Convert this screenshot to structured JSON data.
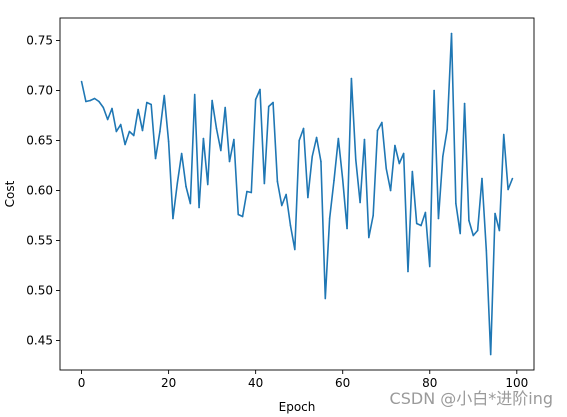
{
  "chart_data": {
    "type": "line",
    "xlabel": "Epoch",
    "ylabel": "Cost",
    "xlim": [
      -4.95,
      103.95
    ],
    "ylim": [
      0.4205,
      0.7725
    ],
    "xticks": [
      "0",
      "20",
      "40",
      "60",
      "80",
      "100"
    ],
    "xtick_values": [
      0,
      20,
      40,
      60,
      80,
      100
    ],
    "yticks": [
      "0.45",
      "0.50",
      "0.55",
      "0.60",
      "0.65",
      "0.70",
      "0.75"
    ],
    "ytick_values": [
      0.45,
      0.5,
      0.55,
      0.6,
      0.65,
      0.7,
      0.75
    ],
    "grid": false,
    "line_color": "#1f77b4",
    "series": [
      {
        "x": [
          0,
          1,
          2,
          3,
          4,
          5,
          6,
          7,
          8,
          9,
          10,
          11,
          12,
          13,
          14,
          15,
          16,
          17,
          18,
          19,
          20,
          21,
          22,
          23,
          24,
          25,
          26,
          27,
          28,
          29,
          30,
          31,
          32,
          33,
          34,
          35,
          36,
          37,
          38,
          39,
          40,
          41,
          42,
          43,
          44,
          45,
          46,
          47,
          48,
          49,
          50,
          51,
          52,
          53,
          54,
          55,
          56,
          57,
          58,
          59,
          60,
          61,
          62,
          63,
          64,
          65,
          66,
          67,
          68,
          69,
          70,
          71,
          72,
          73,
          74,
          75,
          76,
          77,
          78,
          79,
          80,
          81,
          82,
          83,
          84,
          85,
          86,
          87,
          88,
          89,
          90,
          91,
          92,
          93,
          94,
          95,
          96,
          97,
          98,
          99
        ],
        "values": [
          0.709,
          0.689,
          0.69,
          0.692,
          0.689,
          0.683,
          0.671,
          0.682,
          0.659,
          0.666,
          0.646,
          0.659,
          0.655,
          0.681,
          0.66,
          0.688,
          0.686,
          0.632,
          0.659,
          0.695,
          0.649,
          0.572,
          0.607,
          0.637,
          0.604,
          0.587,
          0.696,
          0.583,
          0.652,
          0.606,
          0.69,
          0.662,
          0.64,
          0.683,
          0.629,
          0.651,
          0.576,
          0.574,
          0.599,
          0.598,
          0.691,
          0.701,
          0.607,
          0.684,
          0.688,
          0.609,
          0.585,
          0.596,
          0.565,
          0.541,
          0.65,
          0.662,
          0.593,
          0.634,
          0.653,
          0.629,
          0.492,
          0.572,
          0.61,
          0.652,
          0.611,
          0.562,
          0.712,
          0.631,
          0.588,
          0.651,
          0.553,
          0.575,
          0.66,
          0.668,
          0.622,
          0.6,
          0.645,
          0.627,
          0.637,
          0.519,
          0.619,
          0.567,
          0.565,
          0.578,
          0.524,
          0.7,
          0.572,
          0.634,
          0.661,
          0.757,
          0.587,
          0.557,
          0.687,
          0.57,
          0.555,
          0.56,
          0.612,
          0.54,
          0.436,
          0.577,
          0.56,
          0.656,
          0.601,
          0.612
        ]
      }
    ]
  },
  "watermark": "CSDN @小白*进阶ing"
}
